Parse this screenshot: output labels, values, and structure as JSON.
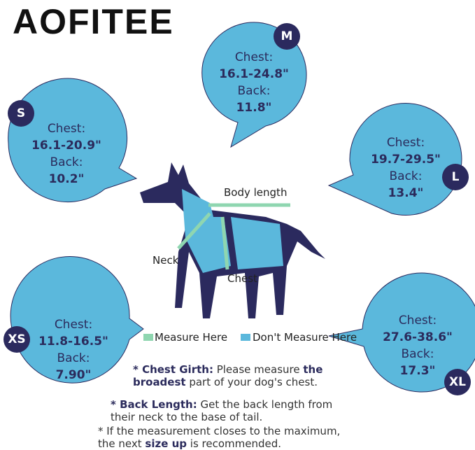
{
  "brand": "AOFITEE",
  "colors": {
    "bubble": "#5bb8dc",
    "navy": "#2b2a5e",
    "measure": "#8fd6b0"
  },
  "sizes": [
    {
      "size": "M",
      "chest_label": "Chest:",
      "chest": "16.1-24.8\"",
      "back_label": "Back:",
      "back": "11.8\""
    },
    {
      "size": "S",
      "chest_label": "Chest:",
      "chest": "16.1-20.9\"",
      "back_label": "Back:",
      "back": "10.2\""
    },
    {
      "size": "L",
      "chest_label": "Chest:",
      "chest": "19.7-29.5\"",
      "back_label": "Back:",
      "back": "13.4\""
    },
    {
      "size": "XS",
      "chest_label": "Chest:",
      "chest": "11.8-16.5\"",
      "back_label": "Back:",
      "back": "7.90\""
    },
    {
      "size": "XL",
      "chest_label": "Chest:",
      "chest": "27.6-38.6\"",
      "back_label": "Back:",
      "back": "17.3\""
    }
  ],
  "diagram": {
    "body_length": "Body length",
    "neck": "Neck",
    "chest": "Chest"
  },
  "legend": {
    "measure": "Measure Here",
    "dont": "Don't Measure Here"
  },
  "notes": {
    "chest_title": "* Chest Girth:",
    "chest_a": " Please measure ",
    "chest_bold": "the broadest",
    "chest_b": " part of your dog's chest.",
    "back_title": "* Back Length:",
    "back_text": " Get the back length from their neck to the base of tail.",
    "max_a": "* If the measurement closes to the maximum, the next ",
    "max_bold": "size up",
    "max_b": " is recommended."
  }
}
